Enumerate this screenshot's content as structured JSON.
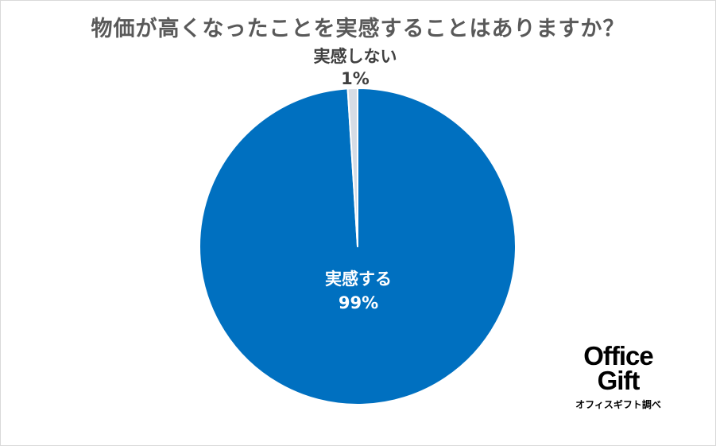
{
  "title": "物価が高くなったことを実感することはありますか？",
  "chart_data": {
    "type": "pie",
    "title": "物価が高くなったことを実感することはありますか？",
    "slices": [
      {
        "label": "実感する",
        "value": 99,
        "value_label": "99%",
        "color": "#0070C0"
      },
      {
        "label": "実感しない",
        "value": 1,
        "value_label": "1%",
        "color": "#D6DCE5"
      }
    ],
    "start_angle": "12 o'clock",
    "direction": "clockwise"
  },
  "logo": {
    "line1": "Office",
    "line2": "Gift",
    "caption": "オフィスギフト調べ"
  },
  "colors": {
    "border": "#d9d9d9",
    "title": "#595959",
    "separator": "#ffffff"
  }
}
